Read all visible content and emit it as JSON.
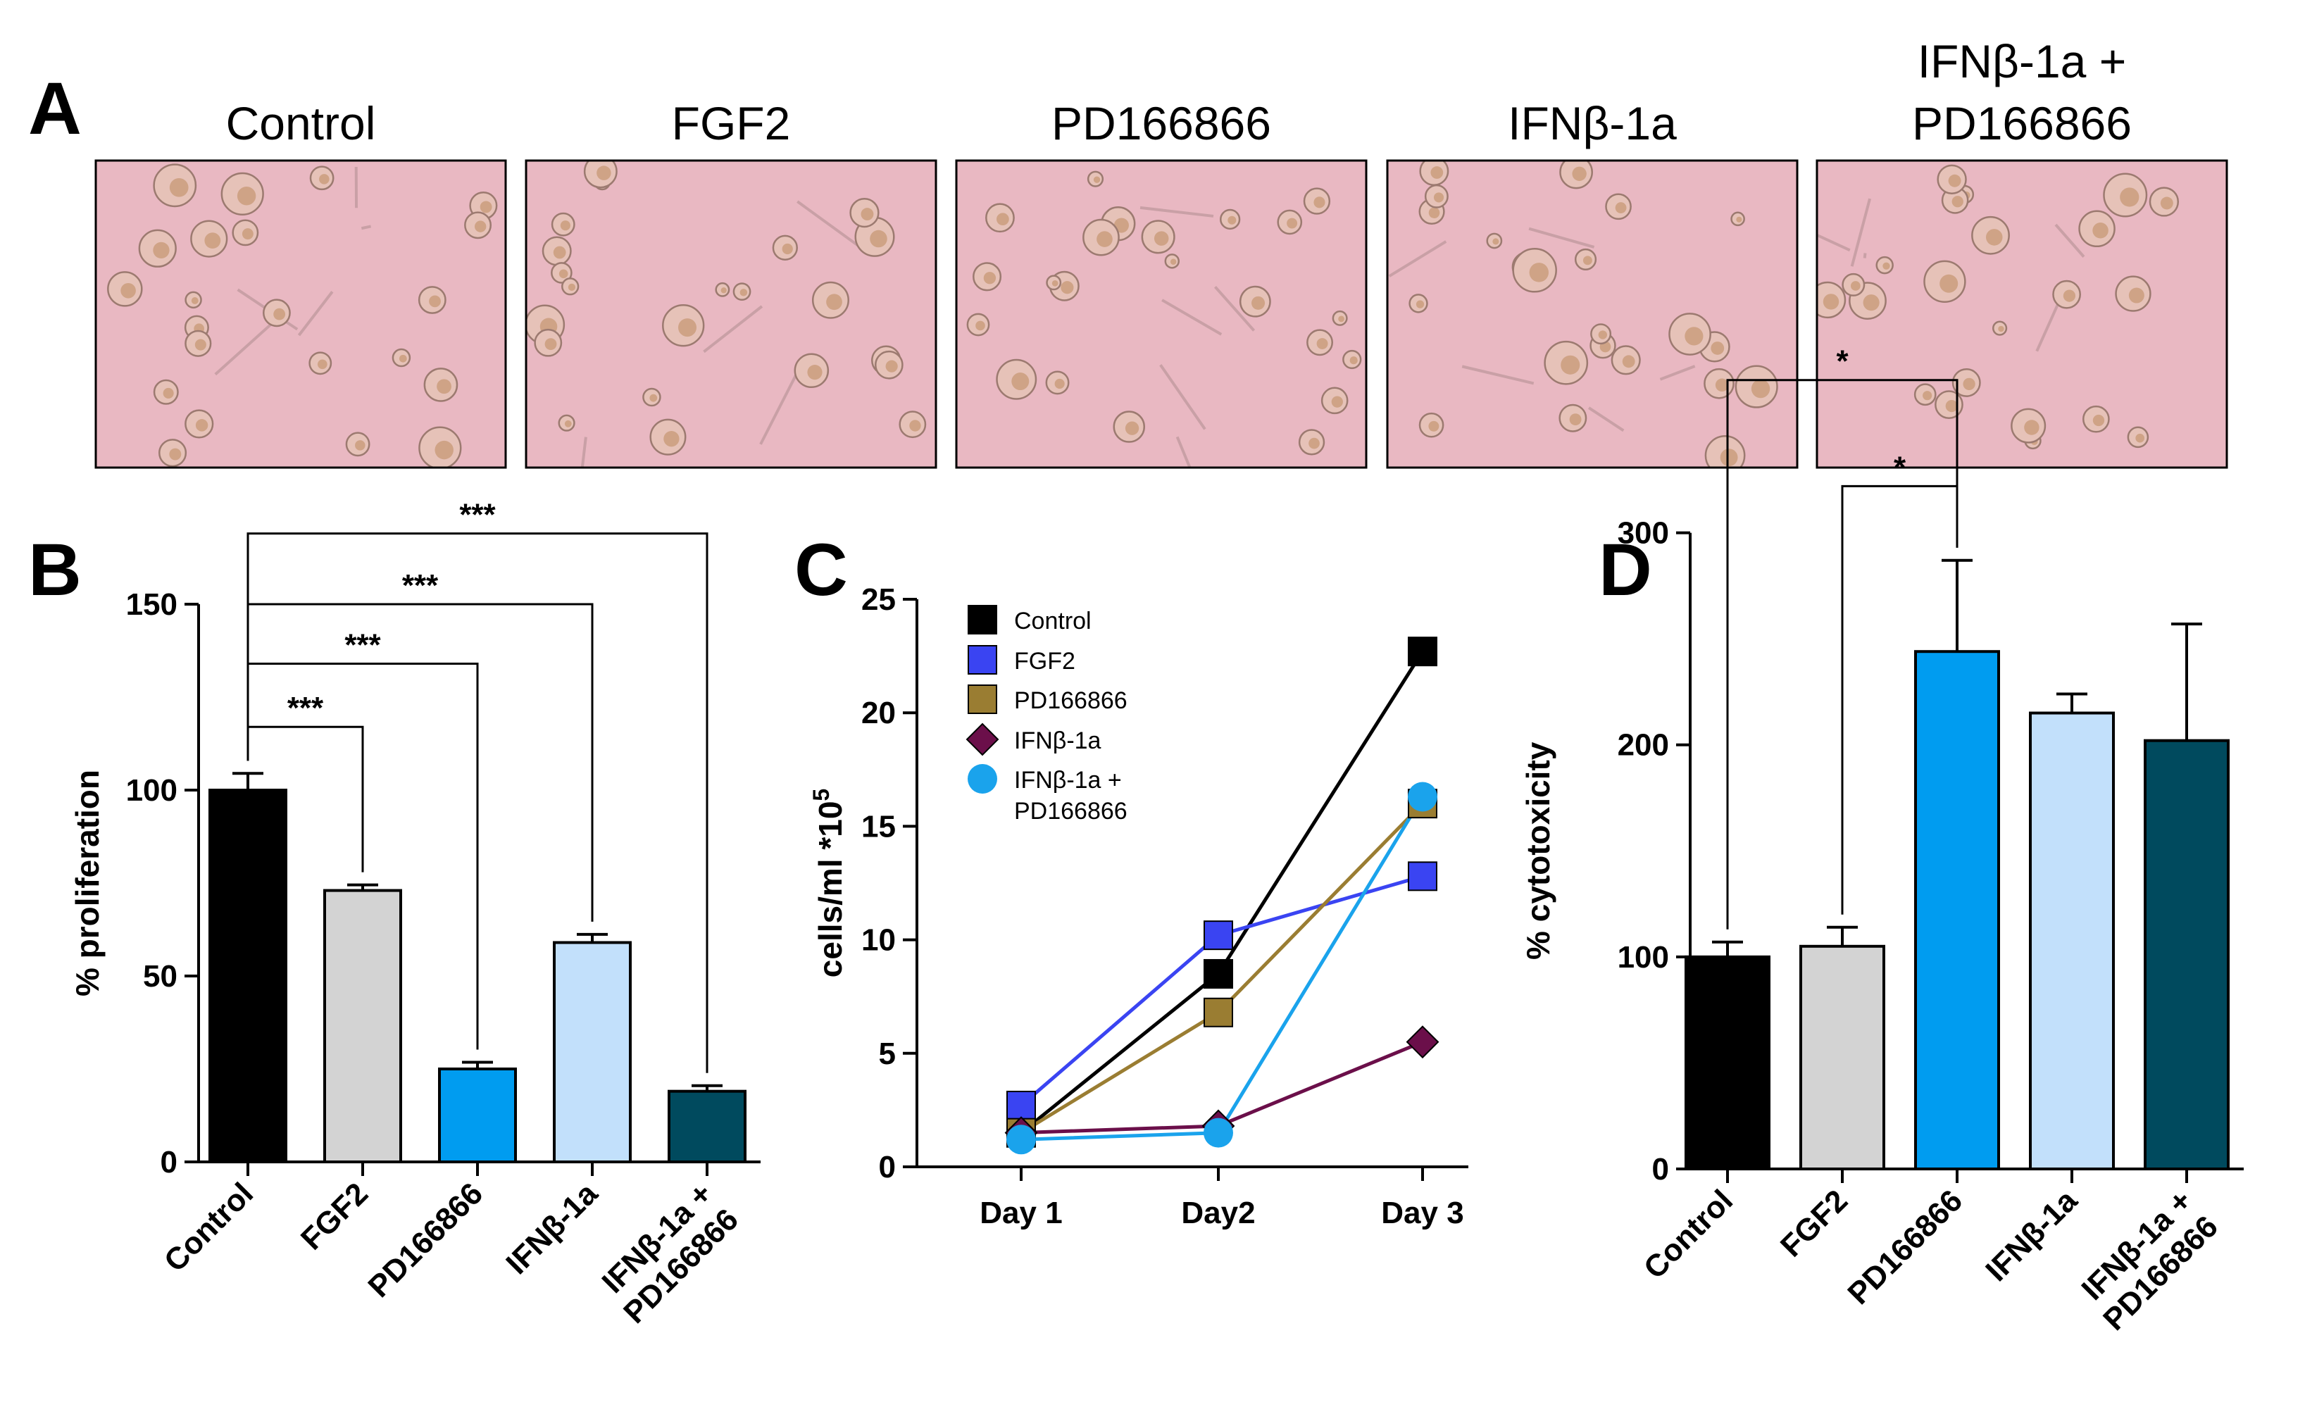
{
  "panels": {
    "A": {
      "letter": "A",
      "images": [
        {
          "label_lines": [
            "Control"
          ]
        },
        {
          "label_lines": [
            "FGF2"
          ]
        },
        {
          "label_lines": [
            "PD166866"
          ]
        },
        {
          "label_lines": [
            "IFNβ-1a"
          ]
        },
        {
          "label_lines": [
            "IFNβ-1a +",
            "PD166866"
          ]
        }
      ]
    },
    "B": {
      "letter": "B"
    },
    "C": {
      "letter": "C"
    },
    "D": {
      "letter": "D"
    }
  },
  "colors": {
    "Control": "#000000",
    "FGF2": "#d3d3d3",
    "PD166866": "#009cf0",
    "IFNb": "#c2e0fb",
    "IFNb_PD": "#004a5e",
    "line_fgf2": "#3a44f2",
    "line_pd": "#9a7d32",
    "line_ifnb": "#6b0f4a",
    "line_ifnb_pd": "#1aa3ec",
    "micrograph_bg": "#e9b8c2"
  },
  "chart_data": [
    {
      "panel": "B",
      "type": "bar",
      "categories": [
        [
          "Control"
        ],
        [
          "FGF2"
        ],
        [
          "PD166866"
        ],
        [
          "IFNβ-1a"
        ],
        [
          "IFNβ-1a +",
          "PD166866"
        ]
      ],
      "values": [
        100,
        73,
        25,
        59,
        19
      ],
      "errors": [
        4.5,
        1.5,
        1.8,
        2.2,
        1.5
      ],
      "ylabel": "% proliferation",
      "ylim": [
        0,
        150
      ],
      "yticks": [
        0,
        50,
        100,
        150
      ],
      "significance": [
        {
          "from": 0,
          "to": 1,
          "label": "***",
          "y": 117
        },
        {
          "from": 0,
          "to": 2,
          "label": "***",
          "y": 134
        },
        {
          "from": 0,
          "to": 3,
          "label": "***",
          "y": 150
        },
        {
          "from": 0,
          "to": 4,
          "label": "***",
          "y": 169
        }
      ]
    },
    {
      "panel": "C",
      "type": "line",
      "x": [
        "Day 1",
        "Day2",
        "Day 3"
      ],
      "ylabel": "cells/ml *10",
      "ylabel_sup": "5",
      "ylim": [
        0,
        25
      ],
      "yticks": [
        0,
        5,
        10,
        15,
        20,
        25
      ],
      "legend_position": "top-left",
      "series": [
        {
          "name": "Control",
          "values": [
            1.5,
            8.5,
            22.7
          ],
          "marker": "square"
        },
        {
          "name": "FGF2",
          "values": [
            2.7,
            10.2,
            12.8
          ],
          "marker": "square"
        },
        {
          "name": "PD166866",
          "values": [
            1.5,
            6.8,
            16.0
          ],
          "marker": "square"
        },
        {
          "name": "IFNβ-1a",
          "values": [
            1.5,
            1.8,
            5.5
          ],
          "marker": "diamond"
        },
        {
          "name_lines": [
            "IFNβ-1a +",
            "PD166866"
          ],
          "values": [
            1.2,
            1.5,
            16.3
          ],
          "marker": "circle"
        }
      ]
    },
    {
      "panel": "D",
      "type": "bar",
      "categories": [
        [
          "Control"
        ],
        [
          "FGF2"
        ],
        [
          "PD166866"
        ],
        [
          "IFNβ-1a"
        ],
        [
          "IFNβ-1a +",
          "PD166866"
        ]
      ],
      "values": [
        100,
        105,
        244,
        215,
        202
      ],
      "errors": [
        7,
        9,
        43,
        9,
        55
      ],
      "ylabel": "% cytotoxicity",
      "ylim": [
        0,
        350
      ],
      "yticks": [
        0,
        100,
        200,
        300
      ],
      "significance": [
        {
          "from": 0,
          "to": 2,
          "label": "*",
          "y": 372
        },
        {
          "from": 1,
          "to": 2,
          "label": "*",
          "y": 322
        }
      ]
    }
  ]
}
